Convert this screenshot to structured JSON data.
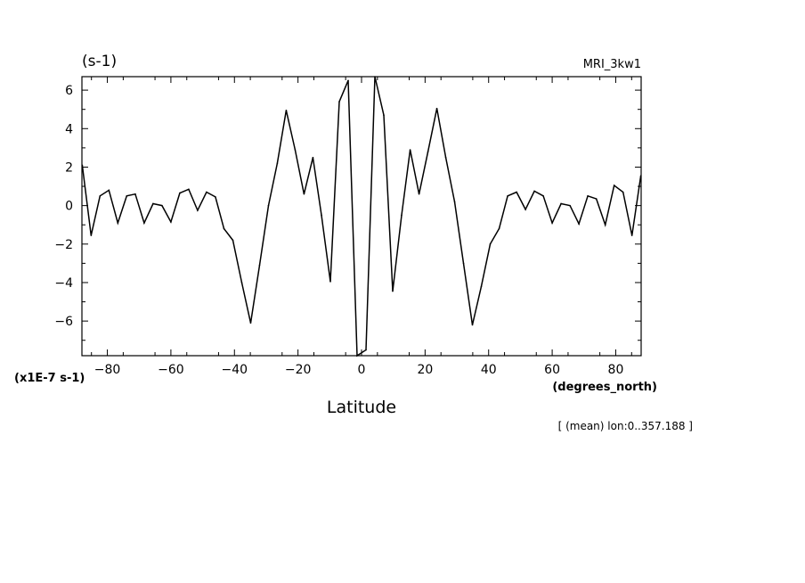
{
  "header": {
    "units": "(s-1)",
    "model": "MRI_3kw1"
  },
  "axes": {
    "y_scale_label": "(x1E-7 s-1)",
    "x_units": "(degrees_north)",
    "x_title": "Latitude"
  },
  "footnote": "[ (mean) lon:0..357.188 ]",
  "chart_data": {
    "type": "line",
    "title": "",
    "xlabel": "Latitude",
    "ylabel": "(s-1)",
    "xlim": [
      -88,
      88
    ],
    "ylim": [
      -7.8,
      6.7
    ],
    "grid": false,
    "x_ticks": [
      -80,
      -60,
      -40,
      -20,
      0,
      20,
      40,
      60,
      80
    ],
    "y_ticks": [
      -6,
      -4,
      -2,
      0,
      2,
      4,
      6
    ],
    "series": [
      {
        "x": [
          -87.9,
          -85.1,
          -82.3,
          -79.5,
          -76.7,
          -73.9,
          -71.2,
          -68.4,
          -65.6,
          -62.8,
          -60.0,
          -57.2,
          -54.4,
          -51.6,
          -48.8,
          -46.0,
          -43.3,
          -40.5,
          -37.7,
          -34.9,
          -32.1,
          -29.3,
          -26.5,
          -23.7,
          -20.9,
          -18.1,
          -15.3,
          -12.6,
          -9.8,
          -7.0,
          -4.2,
          -1.4,
          1.4,
          4.2,
          7.0,
          9.8,
          12.6,
          15.3,
          18.1,
          20.9,
          23.7,
          26.5,
          29.3,
          32.1,
          34.9,
          37.7,
          40.5,
          43.3,
          46.0,
          48.8,
          51.6,
          54.4,
          57.2,
          60.0,
          62.8,
          65.6,
          68.4,
          71.2,
          73.9,
          76.7,
          79.5,
          82.3,
          85.1,
          87.9
        ],
        "y": [
          2.1,
          -1.55,
          0.5,
          0.8,
          -0.9,
          0.5,
          0.6,
          -0.9,
          0.1,
          0.0,
          -0.85,
          0.65,
          0.85,
          -0.25,
          0.7,
          0.45,
          -1.2,
          -1.8,
          -4.0,
          -6.1,
          -3.1,
          0.0,
          2.2,
          4.95,
          2.9,
          0.6,
          2.5,
          -0.5,
          -3.95,
          5.4,
          6.5,
          -7.8,
          -7.5,
          6.7,
          4.7,
          -4.45,
          -0.5,
          2.9,
          0.6,
          2.8,
          5.05,
          2.5,
          0.2,
          -3.0,
          -6.2,
          -4.2,
          -2.0,
          -1.2,
          0.5,
          0.7,
          -0.2,
          0.75,
          0.5,
          -0.9,
          0.1,
          0.0,
          -0.95,
          0.5,
          0.35,
          -1.0,
          1.05,
          0.7,
          -1.55,
          1.55
        ]
      }
    ]
  }
}
